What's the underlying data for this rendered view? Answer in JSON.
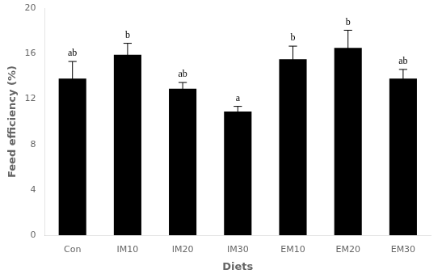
{
  "chart_data": {
    "type": "bar",
    "categories": [
      "Con",
      "IM10",
      "IM20",
      "IM30",
      "EM10",
      "EM20",
      "EM30"
    ],
    "values": [
      13.8,
      15.9,
      12.9,
      10.9,
      15.5,
      16.5,
      13.8
    ],
    "errors": [
      1.5,
      1.0,
      0.55,
      0.45,
      1.15,
      1.55,
      0.8
    ],
    "annotations": [
      "ab",
      "b",
      "ab",
      "a",
      "b",
      "b",
      "ab"
    ],
    "color": "#000000",
    "xlabel": "Diets",
    "ylabel": "Feed efficiency (%)",
    "ylim": [
      0,
      20
    ],
    "yticks": [
      0,
      4,
      8,
      12,
      16,
      20
    ],
    "grid": false
  }
}
